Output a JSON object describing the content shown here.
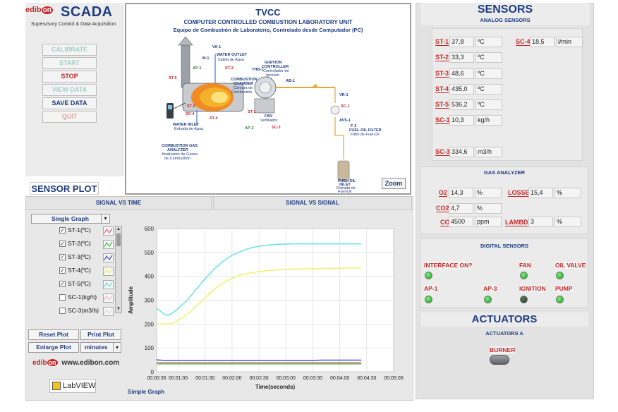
{
  "app": {
    "brand_prefix": "edib",
    "brand_on": "on",
    "name": "SCADA",
    "subtitle": "Supervisory Control & Data Acquisition"
  },
  "controls": {
    "calibrate": "CALIBRATE",
    "start": "START",
    "stop": "STOP",
    "view_data": "VIEW DATA",
    "save_data": "SAVE DATA",
    "quit": "QUIT"
  },
  "diagram": {
    "title": "TVCC",
    "subtitle_en": "COMPUTER CONTROLLED COMBUSTION LABORATORY UNIT",
    "subtitle_es": "Equipo de Combustión de Laboratorio, Controlado desde Computador (PC)",
    "labels": {
      "va1": "VA-1",
      "m1": "M-1",
      "water_outlet": "WATER OUTLET",
      "water_outlet_es": "Salida de Agua",
      "ap1": "AP-1",
      "st3": "ST-3",
      "st5": "ST-5",
      "ignition_controller": "IGNITION",
      "ignition_controller2": "CONTROLLER",
      "ignition_controller_es": "Controlador de",
      "ignition_controller_es2": "Ignición",
      "ab1": "AB-1",
      "combustion_chamber": "COMBUSTION",
      "combustion_chamber2": "CHAMBER",
      "combustion_chamber_es": "Cámara de",
      "combustion_chamber_es2": "Combustión",
      "thb1": "THB-1",
      "st2": "ST-2",
      "sc4": "SC-4",
      "st4": "ST-4",
      "st1": "ST-1",
      "fan": "FAN",
      "fan_es": "Ventilador",
      "ap2": "AP-2",
      "sc3": "SC-3",
      "vr1": "VR-1",
      "sc1": "SC-1",
      "avs1": "AVS-1",
      "f2": "F-2",
      "fuel_filter": "FUEL-OIL FILTER",
      "fuel_filter_es": "Filtro de Fuel-Oil",
      "water_inlet": "WATER INLET",
      "water_inlet_es": "Entrada de Agua",
      "gas_analyzer": "COMBUSTION GAS",
      "gas_analyzer2": "ANALYZER",
      "gas_analyzer_es": "Analizador de Gases",
      "gas_analyzer_es2": "de Combustión",
      "fuel_inlet": "FUEL-OIL",
      "fuel_inlet2": "INLET",
      "fuel_inlet_es": "Entrada de",
      "fuel_inlet_es2": "Fuel-Oil"
    },
    "zoom": "Zoom"
  },
  "sensors": {
    "title": "SENSORS",
    "analog_title": "ANALOG SENSORS",
    "analog": [
      {
        "id": "ST-1",
        "value": "37,8",
        "unit": "ºC"
      },
      {
        "id": "ST-2",
        "value": "33,3",
        "unit": "ºC"
      },
      {
        "id": "ST-3",
        "value": "48,6",
        "unit": "ºC"
      },
      {
        "id": "ST-4",
        "value": "435,0",
        "unit": "ºC"
      },
      {
        "id": "ST-5",
        "value": "536,2",
        "unit": "ºC"
      },
      {
        "id": "SC-1",
        "value": "10,3",
        "unit": "kg/h"
      },
      {
        "id": "SC-3",
        "value": "334,6",
        "unit": "m3/h"
      },
      {
        "id": "SC-4",
        "value": "18,5",
        "unit": "l/min"
      }
    ],
    "gas_title": "GAS ANALYZER",
    "gas": {
      "o2": {
        "label": "O2",
        "value": "14,3",
        "unit": "%"
      },
      "co2": {
        "label": "CO2",
        "value": "4,7",
        "unit": "%"
      },
      "co": {
        "label": "CO",
        "value": "4500",
        "unit": "ppm"
      },
      "losses": {
        "label": "LOSSES",
        "value": "15,4",
        "unit": "%"
      },
      "lambda": {
        "label": "LAMBDA",
        "value": "3",
        "unit": "%"
      }
    },
    "digital_title": "DIGITAL SENSORS",
    "digital": {
      "interface_on": "INTERFACE ON?",
      "fan": "FAN",
      "oil_valve": "OIL VALVE",
      "ap1": "AP-1",
      "ap3": "AP-3",
      "ignition": "IGNITION",
      "pump": "PUMP"
    }
  },
  "actuators": {
    "title": "ACTUATORS",
    "subtitle": "ACTUATORS A",
    "burner": "BURNER"
  },
  "plot": {
    "title": "SENSOR PLOT",
    "tab_time": "SIGNAL VS TIME",
    "tab_signal": "SIGNAL VS SIGNAL",
    "mode": "Single Graph",
    "channels": [
      {
        "label": "ST-1(ºC)",
        "checked": true,
        "color": "#e06070"
      },
      {
        "label": "ST-2(ºC)",
        "checked": true,
        "color": "#3fbf3f"
      },
      {
        "label": "ST-3(ºC)",
        "checked": true,
        "color": "#4646c8"
      },
      {
        "label": "ST-4(ºC)",
        "checked": true,
        "color": "#f0f060"
      },
      {
        "label": "ST-5(ºC)",
        "checked": true,
        "color": "#5fe0e8"
      },
      {
        "label": "SC-1(kg/h)",
        "checked": false,
        "color": "#f2b8c0"
      },
      {
        "label": "SC-3(m3/h)",
        "checked": false,
        "color": "#dcdcdc"
      }
    ],
    "check_mark": "✓",
    "reset": "Reset Plot",
    "print": "Print Plot",
    "enlarge": "Enlarge Plot",
    "time_unit": "minutes",
    "footer_label": "Simple Graph",
    "website": "www.edibon.com",
    "labview": "LabVIEW"
  },
  "chart_data": {
    "type": "line",
    "title": "",
    "xlabel": "Time(seconds)",
    "ylabel": "Amplitude",
    "xlim": [
      36,
      300
    ],
    "ylim": [
      0,
      600
    ],
    "x_ticks": [
      "00:00:36",
      "00:01:00",
      "00:01:30",
      "00:02:00",
      "00:02:30",
      "00:03:00",
      "00:03:30",
      "00:04:00",
      "00:04:30",
      "00:05:00"
    ],
    "y_ticks": [
      "0",
      "100",
      "200",
      "300",
      "400",
      "500",
      "600"
    ],
    "grid": true,
    "x": [
      36,
      40,
      45,
      50,
      55,
      60,
      70,
      80,
      90,
      100,
      110,
      120,
      130,
      140,
      150,
      160,
      170,
      180,
      190,
      200,
      210,
      220,
      230,
      240,
      250,
      264
    ],
    "series": [
      {
        "name": "ST-5(ºC)",
        "color": "#5fe0e8",
        "values": [
          265,
          255,
          238,
          238,
          250,
          265,
          300,
          345,
          390,
          430,
          463,
          488,
          505,
          518,
          526,
          531,
          534,
          535,
          536,
          536,
          536,
          536,
          536,
          536,
          536,
          536
        ]
      },
      {
        "name": "ST-4(ºC)",
        "color": "#f0f060",
        "values": [
          202,
          200,
          200,
          200,
          205,
          215,
          240,
          275,
          310,
          345,
          372,
          392,
          406,
          414,
          420,
          424,
          427,
          429,
          430,
          431,
          432,
          433,
          434,
          434,
          435,
          435
        ]
      },
      {
        "name": "ST-3(ºC)",
        "color": "#4646c8",
        "values": [
          50,
          49,
          48,
          48,
          48,
          48,
          48,
          48,
          48,
          48,
          48,
          48,
          48,
          48,
          48,
          48,
          48,
          48,
          48,
          48,
          48,
          49,
          49,
          49,
          49,
          49
        ]
      },
      {
        "name": "ST-1(ºC)",
        "color": "#e06070",
        "values": [
          38,
          38,
          38,
          38,
          38,
          38,
          38,
          38,
          38,
          38,
          38,
          38,
          38,
          38,
          38,
          38,
          38,
          38,
          38,
          38,
          38,
          38,
          38,
          38,
          38,
          38
        ]
      },
      {
        "name": "ST-2(ºC)",
        "color": "#3fbf3f",
        "values": [
          33,
          33,
          33,
          33,
          33,
          33,
          33,
          33,
          33,
          33,
          33,
          33,
          33,
          33,
          33,
          33,
          33,
          33,
          33,
          33,
          33,
          33,
          33,
          33,
          33,
          33
        ]
      }
    ]
  }
}
